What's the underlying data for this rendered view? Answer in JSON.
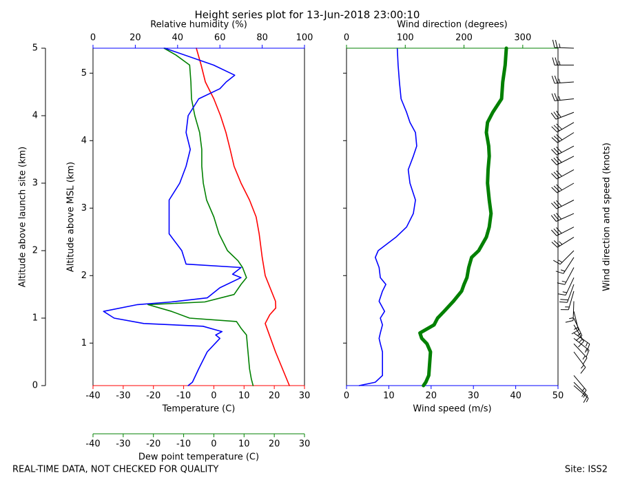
{
  "chart_data": {
    "type": "profile",
    "title": "Height series plot for 13-Jun-2018 23:00:10",
    "footer_left": "REAL-TIME DATA, NOT CHECKED FOR QUALITY",
    "footer_right": "Site: ISS2",
    "ylabel": "Altitude above launch site (km)",
    "ylim": [
      0,
      5
    ],
    "yticks": [
      0,
      1,
      2,
      3,
      4,
      5
    ],
    "y2label": "Altitude above MSL (km)",
    "y2lim": [
      0.37,
      5.37
    ],
    "y2ticks": [
      1,
      2,
      3,
      4,
      5
    ],
    "panels": [
      {
        "axes": [
          {
            "side": "bottom",
            "label": "Temperature (C)",
            "color": "#ff0000",
            "xlim": [
              -40,
              30
            ],
            "xticks": [
              -40,
              -30,
              -20,
              -10,
              0,
              10,
              20,
              30
            ],
            "line_width": 1.6,
            "altitude": [
              0,
              0.5,
              0.92,
              1.05,
              1.15,
              1.25,
              1.63,
              1.9,
              2.25,
              2.5,
              2.75,
              3.0,
              3.25,
              3.5,
              3.75,
              4.0,
              4.25,
              4.5,
              4.75,
              5.0
            ],
            "values": [
              25,
              20.4,
              17,
              18.5,
              20.5,
              20.4,
              17,
              16,
              15,
              14,
              11.8,
              9,
              6.7,
              5.4,
              4,
              2.2,
              0,
              -2.8,
              -4.2,
              -5.8
            ]
          },
          {
            "side": "bottom2",
            "label": "Dew point temperature (C)",
            "color": "#008000",
            "xlim": [
              -40,
              30
            ],
            "xticks": [
              -40,
              -30,
              -20,
              -10,
              0,
              10,
              20,
              30
            ],
            "line_width": 1.6,
            "altitude": [
              0,
              0.1,
              0.25,
              0.5,
              0.75,
              0.85,
              0.95,
              1.0,
              1.1,
              1.2,
              1.24,
              1.35,
              1.5,
              1.6,
              1.75,
              1.85,
              2.0,
              2.25,
              2.5,
              2.75,
              3.0,
              3.25,
              3.5,
              3.75,
              4.0,
              4.25,
              4.5,
              4.75,
              4.9,
              5.0
            ],
            "values": [
              13,
              12.4,
              11.8,
              11.3,
              10.8,
              9,
              7.5,
              -8,
              -14,
              -21.8,
              -3,
              6.7,
              9,
              10.8,
              9.5,
              8,
              4.5,
              1.7,
              0,
              -2.4,
              -3.5,
              -4,
              -4,
              -4.7,
              -6.3,
              -7.4,
              -7.6,
              -8,
              -12.6,
              -16.5
            ]
          },
          {
            "side": "top",
            "label": "Relative humidity (%)",
            "color": "#0000ff",
            "xlim": [
              0,
              100
            ],
            "xticks": [
              0,
              20,
              40,
              60,
              80,
              100
            ],
            "line_width": 1.6,
            "altitude": [
              0,
              0.05,
              0.25,
              0.5,
              0.7,
              0.75,
              0.8,
              0.88,
              0.92,
              1.0,
              1.1,
              1.2,
              1.24,
              1.3,
              1.45,
              1.6,
              1.65,
              1.75,
              1.8,
              2.0,
              2.25,
              2.5,
              2.75,
              3.0,
              3.25,
              3.5,
              3.75,
              4.0,
              4.25,
              4.4,
              4.5,
              4.6,
              4.75,
              5.0
            ],
            "values": [
              45,
              47,
              50,
              54,
              60,
              58,
              61,
              52,
              24,
              10,
              5,
              21,
              37,
              54,
              60,
              70,
              66,
              70,
              44,
              42,
              36,
              36,
              36,
              41,
              44,
              46,
              44,
              45,
              50,
              60,
              63,
              67,
              57,
              34
            ]
          }
        ]
      },
      {
        "barb_label": "Wind direction and speed (knots)",
        "axes": [
          {
            "side": "bottom",
            "label": "Wind speed (m/s)",
            "color": "#0000ff",
            "xlim": [
              0,
              50
            ],
            "xticks": [
              0,
              10,
              20,
              30,
              40,
              50
            ],
            "line_width": 1.6,
            "altitude": [
              0,
              0.05,
              0.15,
              0.5,
              0.62,
              0.7,
              0.78,
              0.9,
              1.0,
              1.1,
              1.25,
              1.4,
              1.5,
              1.6,
              1.75,
              1.9,
              2.0,
              2.2,
              2.35,
              2.55,
              2.75,
              3.0,
              3.2,
              3.4,
              3.55,
              3.75,
              3.9,
              4.05,
              4.25,
              4.5,
              4.75,
              5.0
            ],
            "values": [
              3,
              6.8,
              8.5,
              8.5,
              8,
              7.7,
              8,
              8.5,
              8,
              9,
              7.7,
              8.5,
              9.3,
              8,
              7.7,
              6.8,
              7.5,
              11.7,
              14.2,
              15.8,
              16.3,
              15,
              14.6,
              15.8,
              16.6,
              16.3,
              15,
              14.2,
              12.9,
              12.5,
              12.2,
              12
            ]
          },
          {
            "side": "top",
            "label": "Wind direction (degrees)",
            "color": "#008000",
            "xlim": [
              0,
              360
            ],
            "xticks": [
              0,
              100,
              200,
              300
            ],
            "line_width": 5,
            "altitude": [
              0,
              0.05,
              0.15,
              0.5,
              0.62,
              0.7,
              0.78,
              0.9,
              1.0,
              1.1,
              1.25,
              1.4,
              1.5,
              1.6,
              1.75,
              1.9,
              2.0,
              2.2,
              2.35,
              2.55,
              2.75,
              3.0,
              3.2,
              3.4,
              3.55,
              3.75,
              3.9,
              4.05,
              4.25,
              4.5,
              4.75,
              5.0
            ],
            "values": [
              131,
              135,
              140,
              143,
              137,
              128,
              125,
              149,
              155,
              166,
              182,
              196,
              200,
              205,
              208,
              213,
              225,
              238,
              243,
              246,
              243,
              240,
              241,
              243,
              242,
              238,
              240,
              249,
              264,
              266,
              270,
              272
            ]
          }
        ]
      }
    ]
  }
}
